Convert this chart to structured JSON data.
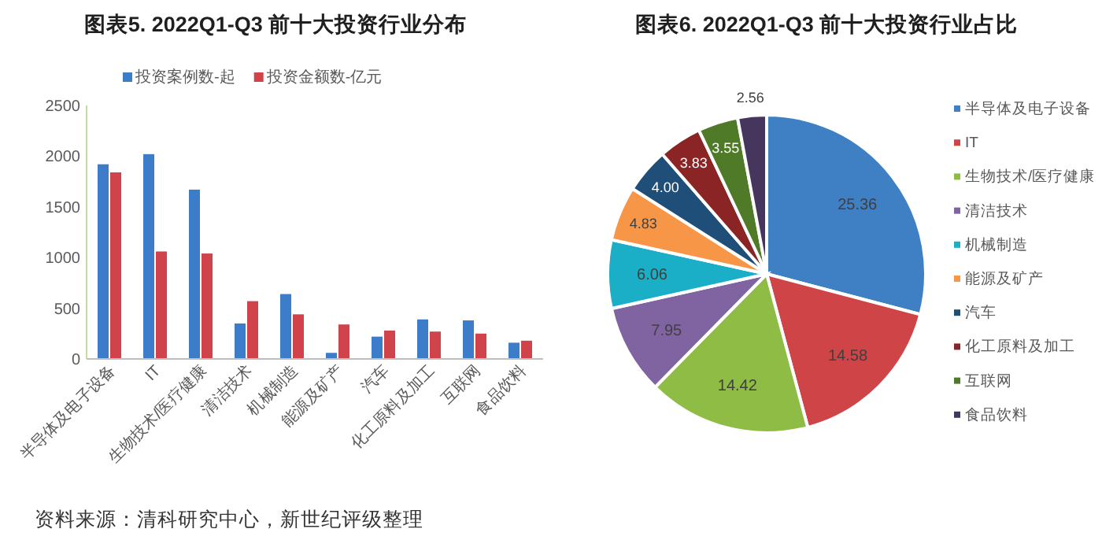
{
  "chart_data": [
    {
      "type": "bar",
      "title": "图表5. 2022Q1-Q3 前十大投资行业分布",
      "categories": [
        "半导体及电子设备",
        "IT",
        "生物技术/医疗健康",
        "清洁技术",
        "机械制造",
        "能源及矿产",
        "汽车",
        "化工原料及加工",
        "互联网",
        "食品饮料"
      ],
      "series": [
        {
          "name": "投资案例数-起",
          "color": "#3d7cc9",
          "values": [
            1920,
            2020,
            1670,
            350,
            640,
            60,
            220,
            390,
            380,
            160
          ]
        },
        {
          "name": "投资金额数-亿元",
          "color": "#d0434b",
          "values": [
            1840,
            1060,
            1040,
            570,
            440,
            340,
            280,
            270,
            250,
            180
          ]
        }
      ],
      "ylim": [
        0,
        2500
      ],
      "yticks": [
        0,
        500,
        1000,
        1500,
        2000,
        2500
      ],
      "legend": "top",
      "annotations": [
        "资料来源：清科研究中心，新世纪评级整理"
      ]
    },
    {
      "type": "pie",
      "title": "图表6. 2022Q1-Q3 前十大投资行业占比",
      "categories": [
        "半导体及电子设备",
        "IT",
        "生物技术/医疗健康",
        "清洁技术",
        "机械制造",
        "能源及矿产",
        "汽车",
        "化工原料及加工",
        "互联网",
        "食品饮料"
      ],
      "values": [
        25.36,
        14.58,
        14.42,
        7.95,
        6.06,
        4.83,
        4.0,
        3.83,
        3.55,
        2.56
      ],
      "value_labels": [
        "25.36",
        "14.58",
        "14.42",
        "7.95",
        "6.06",
        "4.83",
        "4.00",
        "3.83",
        "3.55",
        "2.56"
      ],
      "colors": [
        "#3f7fc4",
        "#cf4447",
        "#8fbc45",
        "#8064a2",
        "#1aaec7",
        "#f79646",
        "#1f4e79",
        "#8b2525",
        "#4f7a28",
        "#46365e"
      ],
      "legend": "right"
    }
  ]
}
